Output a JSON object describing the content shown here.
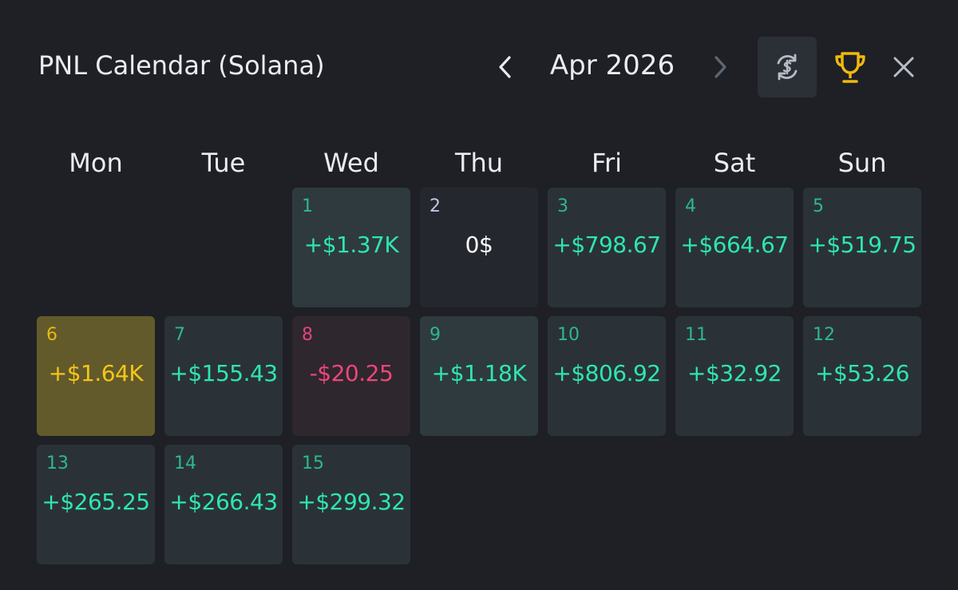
{
  "header": {
    "title": "PNL Calendar (Solana)",
    "month": "Apr 2026",
    "prev_icon": "chevron-left-icon",
    "next_icon": "chevron-right-icon",
    "currency_icon": "dollar-swap-icon",
    "trophy_icon": "trophy-icon",
    "close_icon": "close-icon"
  },
  "weekdays": [
    "Mon",
    "Tue",
    "Wed",
    "Thu",
    "Fri",
    "Sat",
    "Sun"
  ],
  "colors": {
    "background": "#1e2026",
    "profit": "#2ee6b0",
    "loss": "#f0457a",
    "best": "#f5c518",
    "neutral": "#ffffff",
    "trophy": "#f0b90b"
  },
  "days": [
    {
      "day": "1",
      "pnl": "+$1.37K",
      "status": "big-profit"
    },
    {
      "day": "2",
      "pnl": "0$",
      "status": "zero"
    },
    {
      "day": "3",
      "pnl": "+$798.67",
      "status": "profit"
    },
    {
      "day": "4",
      "pnl": "+$664.67",
      "status": "profit"
    },
    {
      "day": "5",
      "pnl": "+$519.75",
      "status": "profit"
    },
    {
      "day": "6",
      "pnl": "+$1.64K",
      "status": "best"
    },
    {
      "day": "7",
      "pnl": "+$155.43",
      "status": "profit"
    },
    {
      "day": "8",
      "pnl": "-$20.25",
      "status": "loss"
    },
    {
      "day": "9",
      "pnl": "+$1.18K",
      "status": "big-profit"
    },
    {
      "day": "10",
      "pnl": "+$806.92",
      "status": "profit"
    },
    {
      "day": "11",
      "pnl": "+$32.92",
      "status": "profit"
    },
    {
      "day": "12",
      "pnl": "+$53.26",
      "status": "profit"
    },
    {
      "day": "13",
      "pnl": "+$265.25",
      "status": "profit"
    },
    {
      "day": "14",
      "pnl": "+$266.43",
      "status": "profit"
    },
    {
      "day": "15",
      "pnl": "+$299.32",
      "status": "profit"
    }
  ]
}
